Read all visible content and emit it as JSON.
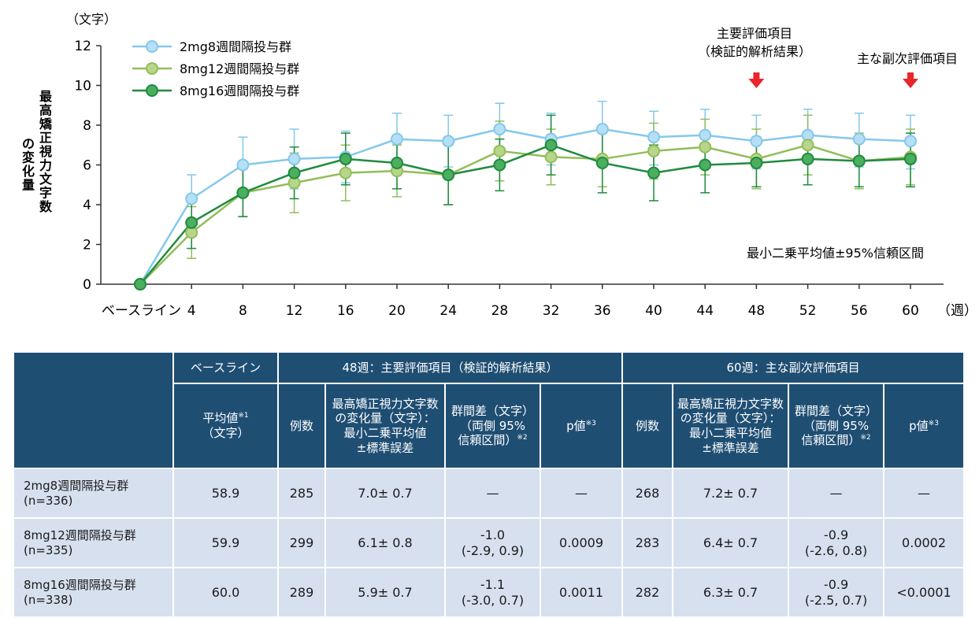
{
  "chart_data": {
    "type": "line",
    "y_unit_label": "（文字）",
    "ylabel": "最高矯正視力文字数の変化量",
    "x_unit_label": "（週）",
    "ylim": [
      0,
      12
    ],
    "yticks": [
      0,
      2,
      4,
      6,
      8,
      10,
      12
    ],
    "categories": [
      "ベースライン",
      "4",
      "8",
      "12",
      "16",
      "20",
      "24",
      "28",
      "32",
      "36",
      "40",
      "44",
      "48",
      "52",
      "56",
      "60"
    ],
    "x": [
      0,
      4,
      8,
      12,
      16,
      20,
      24,
      28,
      32,
      36,
      40,
      44,
      48,
      52,
      56,
      60
    ],
    "legend_position": "top-left",
    "annotation_ci": "最小二乗平均値±95%信頼区間",
    "annotation_primary": [
      "主要評価項目",
      "（検証的解析結果）"
    ],
    "annotation_secondary": "主な副次評価項目",
    "arrow_color": "#e8262b",
    "series": [
      {
        "name": "2mg8週間隔投与群",
        "color": "#84c8ec",
        "fill": "#b6dff5",
        "values": [
          0,
          4.3,
          6.0,
          6.3,
          6.4,
          7.3,
          7.2,
          7.8,
          7.3,
          7.8,
          7.4,
          7.5,
          7.2,
          7.5,
          7.3,
          7.2
        ],
        "lower": [
          0,
          3.1,
          4.8,
          4.8,
          5.1,
          6.0,
          5.9,
          6.5,
          6.0,
          6.4,
          6.0,
          6.2,
          5.8,
          6.1,
          5.9,
          5.8
        ],
        "upper": [
          0,
          5.5,
          7.4,
          7.8,
          7.7,
          8.6,
          8.5,
          9.1,
          8.6,
          9.2,
          8.7,
          8.8,
          8.5,
          8.8,
          8.6,
          8.5
        ]
      },
      {
        "name": "8mg12週間隔投与群",
        "color": "#93bd5a",
        "fill": "#b8d68a",
        "values": [
          0,
          2.6,
          4.6,
          5.1,
          5.6,
          5.7,
          5.5,
          6.7,
          6.4,
          6.3,
          6.7,
          6.9,
          6.3,
          7.0,
          6.2,
          6.4
        ],
        "lower": [
          0,
          1.3,
          3.4,
          3.6,
          4.2,
          4.4,
          4.0,
          5.2,
          5.0,
          4.9,
          5.3,
          5.5,
          4.8,
          5.5,
          4.8,
          5.0
        ],
        "upper": [
          0,
          3.9,
          5.8,
          6.6,
          7.0,
          7.0,
          7.0,
          8.2,
          7.8,
          7.7,
          8.1,
          8.3,
          7.8,
          8.5,
          7.6,
          7.8
        ]
      },
      {
        "name": "8mg16週間隔投与群",
        "color": "#1f8b3e",
        "fill": "#4cae5f",
        "values": [
          0,
          3.1,
          4.6,
          5.6,
          6.3,
          6.1,
          5.5,
          6.0,
          7.0,
          6.1,
          5.6,
          6.0,
          6.1,
          6.3,
          6.2,
          6.3
        ],
        "lower": [
          0,
          1.8,
          3.4,
          4.3,
          5.0,
          4.8,
          4.0,
          4.7,
          5.5,
          4.6,
          4.2,
          4.6,
          4.9,
          5.0,
          4.9,
          4.9
        ],
        "upper": [
          0,
          4.4,
          5.8,
          6.9,
          7.6,
          7.4,
          7.0,
          7.3,
          8.5,
          7.6,
          7.0,
          7.4,
          7.4,
          7.6,
          7.5,
          7.6
        ]
      }
    ]
  },
  "table": {
    "header_top": {
      "baseline": "ベースライン",
      "week48": "48週：主要評価項目（検証的解析結果）",
      "week60": "60週：主な副次評価項目"
    },
    "header_sub": {
      "mean": "平均値",
      "mean_note": "※1",
      "mean_unit": "（文字）",
      "n": "例数",
      "change_1": "最高矯正視力文字数",
      "change_2": "の変化量（文字）：",
      "change_3": "最小二乗平均値",
      "change_4": "±標準誤差",
      "diff_1": "群間差（文字）",
      "diff_2": "（両側 95%",
      "diff_3": "信頼区間）",
      "diff_note": "※2",
      "p": "p値",
      "p_note": "※3"
    },
    "rows": [
      {
        "group": "2mg8週間隔投与群",
        "n_total": "(n=336)",
        "baseline": "58.9",
        "n48": "285",
        "chg48": "7.0± 0.7",
        "diff48_1": "—",
        "diff48_2": "",
        "p48": "—",
        "n60": "268",
        "chg60": "7.2± 0.7",
        "diff60_1": "—",
        "diff60_2": "",
        "p60": "—"
      },
      {
        "group": "8mg12週間隔投与群",
        "n_total": "(n=335)",
        "baseline": "59.9",
        "n48": "299",
        "chg48": "6.1± 0.8",
        "diff48_1": "-1.0",
        "diff48_2": "(-2.9, 0.9)",
        "p48": "0.0009",
        "n60": "283",
        "chg60": "6.4± 0.7",
        "diff60_1": "-0.9",
        "diff60_2": "(-2.6, 0.8)",
        "p60": "0.0002"
      },
      {
        "group": "8mg16週間隔投与群",
        "n_total": "(n=338)",
        "baseline": "60.0",
        "n48": "289",
        "chg48": "5.9± 0.7",
        "diff48_1": "-1.1",
        "diff48_2": "(-3.0, 0.7)",
        "p48": "0.0011",
        "n60": "282",
        "chg60": "6.3± 0.7",
        "diff60_1": "-0.9",
        "diff60_2": "(-2.5, 0.7)",
        "p60": "<0.0001"
      }
    ]
  }
}
